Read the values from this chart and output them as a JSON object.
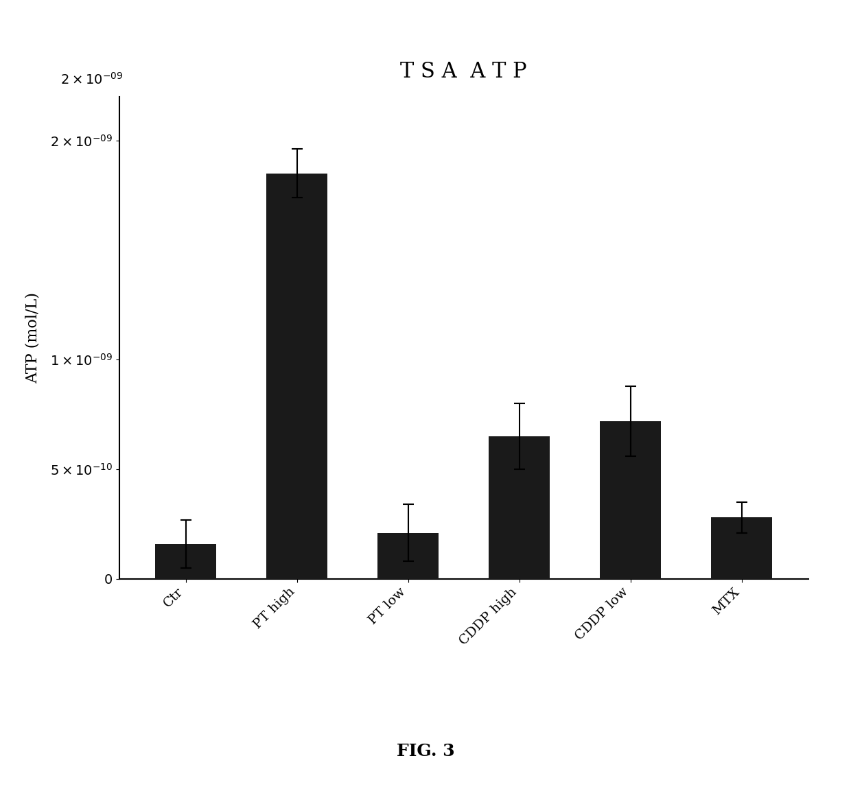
{
  "title": "T S A  A T P",
  "ylabel": "ATP (mol/L)",
  "categories": [
    "Ctr",
    "PT high",
    "PT low",
    "CDDP high",
    "CDDP low",
    "MTX"
  ],
  "values": [
    1.6e-10,
    1.85e-09,
    2.1e-10,
    6.5e-10,
    7.2e-10,
    2.8e-10
  ],
  "errors": [
    1.1e-10,
    1.1e-10,
    1.3e-10,
    1.5e-10,
    1.6e-10,
    7e-11
  ],
  "bar_color": "#1a1a1a",
  "bar_width": 0.55,
  "ylim_max": 2.2e-09,
  "background_color": "#ffffff",
  "figcaption": "FIG. 3",
  "title_fontsize": 22,
  "ylabel_fontsize": 16,
  "tick_fontsize": 14,
  "caption_fontsize": 18
}
